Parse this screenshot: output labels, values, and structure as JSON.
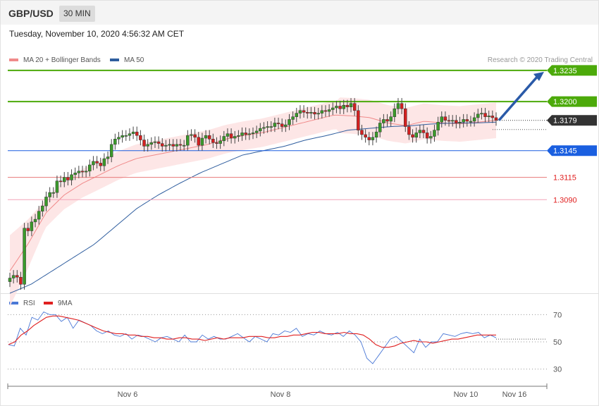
{
  "header": {
    "symbol": "GBP/USD",
    "timeframe": "30 MIN"
  },
  "datetime": "Tuesday, November 10, 2020 4:56:32 AM CET",
  "legend": {
    "ma20": {
      "label": "MA 20 + Bollinger Bands",
      "color": "#f08a8a"
    },
    "ma50": {
      "label": "MA 50",
      "color": "#2e5d9e"
    }
  },
  "credit": "Research © 2020 Trading Central",
  "rsi_legend": {
    "rsi": {
      "label": "RSI",
      "color": "#4a78d6"
    },
    "ma9": {
      "label": "9MA",
      "color": "#e02020"
    }
  },
  "chart_data": [
    {
      "type": "candlestick",
      "symbol": "GBP/USD",
      "timeframe": "30 MIN",
      "ylim": [
        1.2985,
        1.3265
      ],
      "x_ticks": [
        "Nov 6",
        "Nov 8",
        "Nov 10",
        "Nov 16"
      ],
      "levels": [
        {
          "value": "1.3235",
          "kind": "resistance",
          "color": "#4caa0a"
        },
        {
          "value": "1.3200",
          "kind": "resistance",
          "color": "#4caa0a"
        },
        {
          "value": "1.3179",
          "kind": "last",
          "color": "#333333"
        },
        {
          "value": "1.3145",
          "kind": "pivot",
          "color": "#1a5fe0"
        },
        {
          "value": "1.3115",
          "kind": "support",
          "color": "#e02020"
        },
        {
          "value": "1.3090",
          "kind": "support",
          "color": "#e02020"
        }
      ],
      "candles_close": [
        1.3002,
        1.3005,
        1.3003,
        1.2995,
        1.3058,
        1.3055,
        1.3065,
        1.3068,
        1.3077,
        1.3083,
        1.3093,
        1.3098,
        1.3098,
        1.3111,
        1.311,
        1.3115,
        1.3112,
        1.3118,
        1.312,
        1.3122,
        1.3121,
        1.3122,
        1.3129,
        1.3133,
        1.3131,
        1.3128,
        1.3136,
        1.3138,
        1.3152,
        1.3158,
        1.316,
        1.3162,
        1.3162,
        1.3164,
        1.3166,
        1.3162,
        1.3157,
        1.315,
        1.3152,
        1.3154,
        1.3155,
        1.3153,
        1.315,
        1.3151,
        1.3152,
        1.315,
        1.3152,
        1.3151,
        1.3151,
        1.3162,
        1.3163,
        1.316,
        1.3151,
        1.3159,
        1.3162,
        1.3158,
        1.3154,
        1.3153,
        1.3156,
        1.3161,
        1.3164,
        1.3159,
        1.3161,
        1.3162,
        1.3165,
        1.3163,
        1.3164,
        1.3165,
        1.3167,
        1.317,
        1.3171,
        1.3172,
        1.3172,
        1.3176,
        1.3175,
        1.3172,
        1.3174,
        1.318,
        1.3183,
        1.3187,
        1.319,
        1.3188,
        1.3187,
        1.3188,
        1.3186,
        1.3187,
        1.319,
        1.3189,
        1.3191,
        1.3193,
        1.3195,
        1.3192,
        1.3196,
        1.3194,
        1.3198,
        1.319,
        1.3168,
        1.3163,
        1.316,
        1.3157,
        1.316,
        1.3166,
        1.3176,
        1.318,
        1.3178,
        1.3183,
        1.3192,
        1.3198,
        1.3192,
        1.3172,
        1.3163,
        1.316,
        1.3165,
        1.3168,
        1.3165,
        1.3159,
        1.3161,
        1.3168,
        1.3177,
        1.3183,
        1.3179,
        1.3178,
        1.3179,
        1.3176,
        1.3177,
        1.318,
        1.3178,
        1.3178,
        1.3182,
        1.3186,
        1.3187,
        1.3183,
        1.3184,
        1.3182,
        1.3179
      ],
      "ma20": [
        1.301,
        1.304,
        1.3075,
        1.3095,
        1.3108,
        1.3118,
        1.3128,
        1.3136,
        1.314,
        1.3144,
        1.3148,
        1.3152,
        1.3158,
        1.3162,
        1.3165,
        1.317,
        1.3175,
        1.318,
        1.3185,
        1.3184,
        1.3182,
        1.3176,
        1.3173,
        1.3178,
        1.3176,
        1.3175,
        1.3177,
        1.3179
      ],
      "ma50": [
        1.2985,
        1.2995,
        1.301,
        1.3025,
        1.304,
        1.306,
        1.308,
        1.3095,
        1.3108,
        1.312,
        1.313,
        1.314,
        1.3145,
        1.315,
        1.3157,
        1.3162,
        1.3168,
        1.317,
        1.3172,
        1.3173,
        1.3175,
        1.3176,
        1.3176,
        1.3177
      ],
      "projection": {
        "from": "1.3179",
        "to": "1.3235"
      }
    },
    {
      "type": "line",
      "name": "RSI",
      "ylim": [
        20,
        80
      ],
      "y_ticks": [
        "70",
        "50",
        "30"
      ],
      "series": [
        {
          "name": "RSI",
          "values": [
            48,
            47,
            60,
            55,
            68,
            66,
            72,
            70,
            70,
            65,
            68,
            60,
            66,
            64,
            62,
            58,
            56,
            58,
            55,
            54,
            56,
            52,
            55,
            54,
            52,
            50,
            53,
            54,
            52,
            50,
            55,
            50,
            50,
            55,
            52,
            54,
            52,
            52,
            54,
            56,
            53,
            50,
            54,
            52,
            50,
            56,
            55,
            58,
            57,
            60,
            54,
            56,
            55,
            58,
            56,
            55,
            57,
            54,
            58,
            55,
            50,
            38,
            34,
            40,
            46,
            52,
            54,
            50,
            46,
            42,
            52,
            46,
            50,
            50,
            56,
            55,
            54,
            56,
            57,
            56,
            57,
            53,
            55,
            53
          ]
        },
        {
          "name": "9MA",
          "values": [
            48,
            50,
            55,
            58,
            62,
            65,
            68,
            69,
            69,
            68,
            67,
            66,
            64,
            62,
            60,
            58,
            57,
            56,
            56,
            55,
            55,
            54,
            54,
            53,
            53,
            52,
            52,
            53,
            53,
            52,
            52,
            51,
            52,
            53,
            52,
            53,
            53,
            53,
            54,
            54,
            54,
            53,
            53,
            54,
            54,
            55,
            55,
            56,
            57,
            57,
            56,
            56,
            56,
            57,
            56,
            56,
            55,
            52,
            48,
            46,
            46,
            47,
            49,
            50,
            51,
            50,
            50,
            49,
            50,
            51,
            52,
            52,
            53,
            54,
            55,
            55,
            55,
            55
          ]
        }
      ]
    }
  ]
}
